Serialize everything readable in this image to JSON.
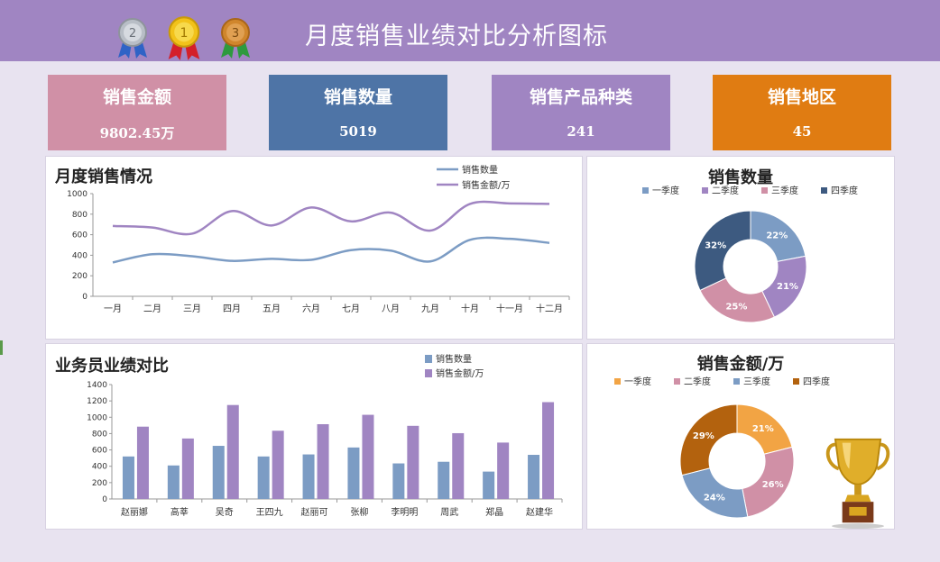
{
  "header": {
    "title": "月度销售业绩对比分析图标",
    "medals": [
      {
        "label": "2",
        "icon": "silver-medal-icon",
        "color": "#b8bec6",
        "ribbon": "#2f63c6"
      },
      {
        "label": "1",
        "icon": "gold-medal-icon",
        "color": "#f2c21a",
        "ribbon": "#d4202a"
      },
      {
        "label": "3",
        "icon": "bronze-medal-icon",
        "color": "#d0862c",
        "ribbon": "#2e9a3e"
      }
    ]
  },
  "kpis": [
    {
      "label": "销售金额",
      "value": "9802.45万",
      "color": "#d090a6"
    },
    {
      "label": "销售数量",
      "value": "5019",
      "color": "#4e74a6"
    },
    {
      "label": "销售产品种类",
      "value": "241",
      "color": "#a085c2"
    },
    {
      "label": "销售地区",
      "value": "45",
      "color": "#e07c12"
    }
  ],
  "monthly": {
    "title": "月度销售情况",
    "chart_data": {
      "type": "line",
      "categories": [
        "一月",
        "二月",
        "三月",
        "四月",
        "五月",
        "六月",
        "七月",
        "八月",
        "九月",
        "十月",
        "十一月",
        "十二月"
      ],
      "series": [
        {
          "name": "销售数量",
          "color": "#7c9cc4",
          "values": [
            330,
            410,
            390,
            345,
            365,
            355,
            450,
            445,
            340,
            550,
            560,
            520
          ]
        },
        {
          "name": "销售金额/万",
          "color": "#a085c2",
          "values": [
            685,
            670,
            610,
            830,
            690,
            865,
            730,
            815,
            640,
            900,
            905,
            900
          ]
        }
      ],
      "ylim": [
        0,
        1000
      ],
      "yticks": [
        0,
        200,
        400,
        600,
        800,
        1000
      ],
      "legend": "top-right"
    }
  },
  "donut_qty": {
    "title": "销售数量",
    "chart_data": {
      "type": "pie",
      "categories": [
        "一季度",
        "二季度",
        "三季度",
        "四季度"
      ],
      "values": [
        22,
        21,
        25,
        32
      ],
      "labels": [
        "22%",
        "21%",
        "25%",
        "32%"
      ],
      "colors": [
        "#7c9cc4",
        "#a085c2",
        "#d090a6",
        "#3d5a80"
      ],
      "legend": "top"
    }
  },
  "staff": {
    "title": "业务员业绩对比",
    "chart_data": {
      "type": "bar",
      "categories": [
        "赵丽娜",
        "高莘",
        "吴奇",
        "王四九",
        "赵丽可",
        "张柳",
        "李明明",
        "周武",
        "郑晶",
        "赵建华"
      ],
      "series": [
        {
          "name": "销售数量",
          "color": "#7c9cc4",
          "values": [
            520,
            410,
            650,
            520,
            545,
            630,
            435,
            455,
            335,
            540
          ]
        },
        {
          "name": "销售金额/万",
          "color": "#a085c2",
          "values": [
            885,
            740,
            1150,
            835,
            915,
            1030,
            895,
            805,
            690,
            1185
          ]
        }
      ],
      "ylim": [
        0,
        1400
      ],
      "yticks": [
        0,
        200,
        400,
        600,
        800,
        1000,
        1200,
        1400
      ],
      "legend": "top"
    }
  },
  "donut_amt": {
    "title": "销售金额/万",
    "chart_data": {
      "type": "pie",
      "categories": [
        "一季度",
        "二季度",
        "三季度",
        "四季度"
      ],
      "values": [
        21,
        26,
        24,
        29
      ],
      "labels": [
        "21%",
        "26%",
        "24%",
        "29%"
      ],
      "colors": [
        "#f2a444",
        "#d090a6",
        "#7c9cc4",
        "#b3620e"
      ],
      "legend": "top"
    }
  },
  "trophy": {
    "icon": "trophy-icon",
    "color": "#d9a520"
  }
}
